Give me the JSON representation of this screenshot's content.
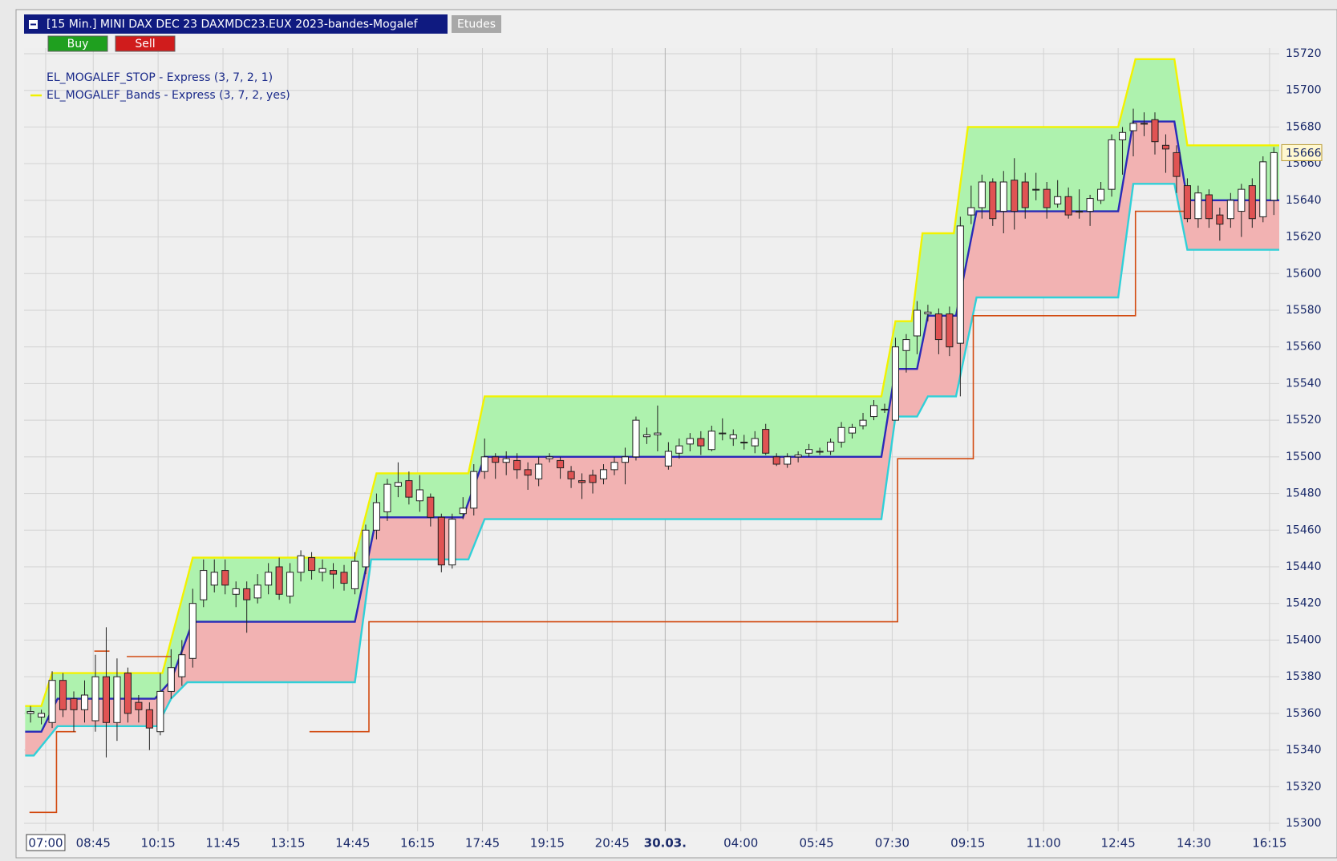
{
  "chart_data": {
    "type": "candlestick",
    "title": "[15 Min.] MINI DAX DEC 23   DAXMDC23.EUX 2023-bandes-Mogalef",
    "tab": "Etudes",
    "buttons": [
      {
        "label": "Buy",
        "color": "#1fa01f"
      },
      {
        "label": "Sell",
        "color": "#d01c1c"
      }
    ],
    "legend": [
      {
        "label": "EL_MOGALEF_STOP - Express  (3, 7, 2, 1)",
        "color": null
      },
      {
        "label": "EL_MOGALEF_Bands - Express  (3, 7, 2, yes)",
        "color": "#f0f000"
      }
    ],
    "x": [
      0,
      1,
      2,
      3,
      4,
      5,
      6,
      7,
      8,
      9,
      10,
      11,
      12,
      13,
      14,
      15,
      16,
      17,
      18,
      19,
      20,
      21,
      22,
      23,
      24,
      25,
      26,
      27,
      28,
      29,
      30,
      31,
      32,
      33,
      34,
      35,
      36,
      37,
      38,
      39,
      40,
      41,
      42,
      43,
      44,
      45,
      46,
      47,
      48,
      49,
      50,
      51,
      52,
      53,
      54,
      55,
      56,
      57,
      58,
      59,
      60,
      61,
      62,
      63,
      64,
      65,
      66,
      67,
      68,
      69,
      70,
      71,
      72,
      73,
      74,
      75,
      76,
      77,
      78,
      79,
      80,
      81,
      82,
      83,
      84,
      85,
      86,
      87,
      88,
      89,
      90,
      91,
      92,
      93,
      94,
      95,
      96,
      97,
      98,
      99,
      100,
      101,
      102,
      103,
      104,
      105,
      106,
      107,
      108,
      109,
      110,
      111,
      112,
      113,
      114,
      115
    ],
    "open": [
      15360,
      15358,
      15355,
      15378,
      15368,
      15362,
      15356,
      15380,
      15355,
      15382,
      15366,
      15362,
      15350,
      15372,
      15380,
      15390,
      15422,
      15430,
      15438,
      15425,
      15428,
      15423,
      15430,
      15440,
      15424,
      15437,
      15445,
      15437,
      15438,
      15437,
      15428,
      15440,
      15460,
      15470,
      15484,
      15487,
      15476,
      15478,
      15467,
      15441,
      15469,
      15472,
      15492,
      15500,
      15497,
      15498,
      15493,
      15488,
      15499,
      15498,
      15492,
      15487,
      15490,
      15488,
      15493,
      15497,
      15500,
      15511,
      15512,
      15495,
      15502,
      15507,
      15510,
      15504,
      15513,
      15510,
      15508,
      15506,
      15515,
      15500,
      15496,
      15500,
      15502,
      15503,
      15503,
      15508,
      15513,
      15517,
      15522,
      15526,
      15520,
      15558,
      15566,
      15578,
      15578,
      15578,
      15562,
      15632,
      15636,
      15650,
      15634,
      15651,
      15650,
      15646,
      15646,
      15638,
      15642,
      15634,
      15634,
      15640,
      15646,
      15673,
      15678,
      15682,
      15684,
      15670,
      15666,
      15648,
      15630,
      15643,
      15632,
      15630,
      15634,
      15648,
      15631,
      15640
    ],
    "high": [
      15364,
      15362,
      15383,
      15382,
      15372,
      15378,
      15392,
      15407,
      15390,
      15385,
      15370,
      15366,
      15382,
      15395,
      15400,
      15428,
      15444,
      15444,
      15444,
      15432,
      15432,
      15436,
      15442,
      15445,
      15442,
      15449,
      15448,
      15444,
      15442,
      15441,
      15448,
      15463,
      15480,
      15488,
      15497,
      15492,
      15490,
      15480,
      15469,
      15469,
      15478,
      15496,
      15510,
      15502,
      15503,
      15502,
      15497,
      15500,
      15502,
      15500,
      15495,
      15491,
      15493,
      15496,
      15500,
      15505,
      15522,
      15516,
      15528,
      15508,
      15510,
      15513,
      15514,
      15517,
      15521,
      15515,
      15512,
      15514,
      15518,
      15502,
      15502,
      15503,
      15507,
      15505,
      15510,
      15519,
      15518,
      15524,
      15531,
      15529,
      15565,
      15567,
      15585,
      15583,
      15581,
      15582,
      15631,
      15648,
      15654,
      15652,
      15656,
      15663,
      15655,
      15655,
      15650,
      15651,
      15647,
      15646,
      15643,
      15650,
      15676,
      15680,
      15690,
      15688,
      15688,
      15676,
      15670,
      15652,
      15648,
      15646,
      15636,
      15644,
      15649,
      15652,
      15664,
      15669
    ],
    "low": [
      15355,
      15354,
      15352,
      15358,
      15350,
      15355,
      15350,
      15336,
      15345,
      15355,
      15355,
      15340,
      15348,
      15368,
      15375,
      15385,
      15418,
      15426,
      15425,
      15418,
      15404,
      15420,
      15425,
      15422,
      15420,
      15432,
      15433,
      15432,
      15428,
      15427,
      15425,
      15436,
      15455,
      15465,
      15478,
      15474,
      15470,
      15462,
      15437,
      15439,
      15466,
      15468,
      15488,
      15488,
      15490,
      15488,
      15482,
      15484,
      15497,
      15488,
      15483,
      15477,
      15480,
      15485,
      15490,
      15485,
      15498,
      15507,
      15503,
      15493,
      15499,
      15503,
      15501,
      15503,
      15509,
      15506,
      15504,
      15502,
      15501,
      15495,
      15494,
      15497,
      15500,
      15501,
      15501,
      15505,
      15510,
      15515,
      15520,
      15524,
      15520,
      15546,
      15556,
      15574,
      15556,
      15555,
      15533,
      15627,
      15630,
      15626,
      15622,
      15624,
      15630,
      15640,
      15630,
      15636,
      15630,
      15630,
      15626,
      15638,
      15642,
      15654,
      15664,
      15675,
      15665,
      15655,
      15644,
      15628,
      15625,
      15625,
      15618,
      15625,
      15620,
      15625,
      15628,
      15632
    ],
    "close": [
      15361,
      15360,
      15378,
      15362,
      15362,
      15370,
      15380,
      15355,
      15380,
      15360,
      15362,
      15352,
      15372,
      15385,
      15392,
      15420,
      15438,
      15437,
      15430,
      15428,
      15422,
      15430,
      15437,
      15425,
      15437,
      15446,
      15438,
      15439,
      15436,
      15431,
      15443,
      15460,
      15475,
      15485,
      15486,
      15478,
      15482,
      15467,
      15441,
      15466,
      15472,
      15492,
      15500,
      15497,
      15499,
      15493,
      15490,
      15496,
      15500,
      15494,
      15488,
      15486,
      15486,
      15493,
      15497,
      15500,
      15520,
      15512,
      15513,
      15503,
      15506,
      15510,
      15506,
      15514,
      15513,
      15512,
      15508,
      15510,
      15502,
      15496,
      15500,
      15501,
      15504,
      15503,
      15508,
      15516,
      15516,
      15520,
      15528,
      15526,
      15560,
      15564,
      15580,
      15579,
      15564,
      15560,
      15626,
      15636,
      15650,
      15630,
      15650,
      15634,
      15636,
      15646,
      15636,
      15642,
      15632,
      15634,
      15641,
      15646,
      15673,
      15677,
      15682,
      15682,
      15672,
      15668,
      15653,
      15630,
      15644,
      15630,
      15627,
      15640,
      15646,
      15630,
      15661,
      15666
    ],
    "up_color": "#ffffff",
    "down_color": "#e05353",
    "lines": [
      {
        "color": "#f2f200",
        "x": [
          -0.5,
          1,
          2,
          12.2,
          15,
          30,
          32,
          40.5,
          42,
          78.7,
          80,
          81.5,
          82.5,
          85.4,
          86.7,
          100.6,
          102.2,
          105.8,
          107,
          115.5
        ],
        "values": [
          15364,
          15364,
          15382,
          15382,
          15445,
          15445,
          15491,
          15491,
          15533,
          15533,
          15574,
          15574,
          15622,
          15622,
          15680,
          15680,
          15717,
          15717,
          15670,
          15670
        ]
      },
      {
        "color": "#2a2ab8",
        "x": [
          -0.5,
          1,
          2.5,
          11.5,
          13,
          15,
          30,
          32,
          40,
          42,
          78.7,
          80,
          82,
          83,
          85.6,
          87.5,
          100.6,
          102,
          105.8,
          107,
          115.5
        ],
        "values": [
          15350,
          15350,
          15368,
          15368,
          15378,
          15410,
          15410,
          15467,
          15467,
          15500,
          15500,
          15548,
          15548,
          15577,
          15577,
          15634,
          15634,
          15683,
          15683,
          15640,
          15640
        ]
      },
      {
        "color": "#30d0d8",
        "x": [
          -0.5,
          0.3,
          2.5,
          11.7,
          13,
          14.5,
          30,
          31.5,
          40.5,
          42,
          78.7,
          80,
          82,
          83,
          85.6,
          87.5,
          100.6,
          102,
          105.8,
          107,
          115.5
        ],
        "values": [
          15337,
          15337,
          15353,
          15353,
          15368,
          15377,
          15377,
          15444,
          15444,
          15466,
          15466,
          15522,
          15522,
          15533,
          15533,
          15587,
          15587,
          15649,
          15649,
          15613,
          15613
        ]
      },
      {
        "color": "#d24a10",
        "x": [
          -0.1,
          2.4,
          2.4,
          4.2,
          null,
          5.9,
          7.3,
          null,
          8.9,
          13,
          null,
          25.8,
          31.3,
          31.3,
          80.2,
          80.2,
          87.2,
          87.2,
          102.2,
          102.2,
          106.7
        ],
        "values": [
          15306,
          15306,
          15350,
          15350,
          null,
          15394,
          15394,
          null,
          15391,
          15391,
          null,
          15350,
          15350,
          15410,
          15410,
          15499,
          15499,
          15577,
          15577,
          15634,
          15634
        ]
      }
    ],
    "fills": [
      {
        "between": [
          0,
          1
        ],
        "color": "#aef2ae"
      },
      {
        "between": [
          1,
          2
        ],
        "color": "#f2b2b2"
      }
    ],
    "last_value": 15666,
    "xlim": [
      -0.6,
      115.5
    ],
    "ylim": [
      15300,
      15720
    ],
    "yticks": [
      15300,
      15320,
      15340,
      15360,
      15380,
      15400,
      15420,
      15440,
      15460,
      15480,
      15500,
      15520,
      15540,
      15560,
      15580,
      15600,
      15620,
      15640,
      15660,
      15680,
      15700,
      15720
    ],
    "xticks": [
      {
        "value": 1.4,
        "label": "07:00"
      },
      {
        "value": 5.8,
        "label": "08:45"
      },
      {
        "value": 11.8,
        "label": "10:15"
      },
      {
        "value": 17.8,
        "label": "11:45"
      },
      {
        "value": 23.8,
        "label": "13:15"
      },
      {
        "value": 29.8,
        "label": "14:45"
      },
      {
        "value": 35.8,
        "label": "16:15"
      },
      {
        "value": 41.8,
        "label": "17:45"
      },
      {
        "value": 47.8,
        "label": "19:15"
      },
      {
        "value": 53.8,
        "label": "20:45"
      },
      {
        "value": 58.7,
        "label": "30.03."
      },
      {
        "value": 65.7,
        "label": "04:00"
      },
      {
        "value": 72.7,
        "label": "05:45"
      },
      {
        "value": 79.7,
        "label": "07:30"
      },
      {
        "value": 86.7,
        "label": "09:15"
      },
      {
        "value": 93.7,
        "label": "11:00"
      },
      {
        "value": 100.6,
        "label": "12:45"
      },
      {
        "value": 107.6,
        "label": "14:30"
      },
      {
        "value": 114.6,
        "label": "16:15"
      }
    ],
    "grid": true
  }
}
